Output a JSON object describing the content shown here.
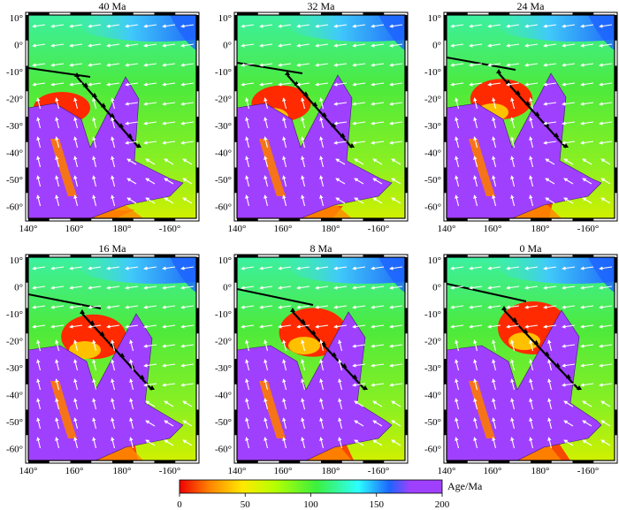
{
  "figure": {
    "panels": [
      {
        "title": "40 Ma"
      },
      {
        "title": "32 Ma"
      },
      {
        "title": "24 Ma"
      },
      {
        "title": "16 Ma"
      },
      {
        "title": "8 Ma"
      },
      {
        "title": "0 Ma"
      }
    ],
    "lat_labels": [
      "10°",
      "0°",
      "-10°",
      "-20°",
      "-30°",
      "-40°",
      "-50°",
      "-60°"
    ],
    "lon_labels": [
      "140°",
      "160°",
      "180°",
      "-160°"
    ],
    "colorbar": {
      "label": "Age/Ma",
      "ticks": [
        "0",
        "50",
        "100",
        "150",
        "200"
      ],
      "colors": [
        "#f00000",
        "#ff8a00",
        "#ffe800",
        "#b8ff00",
        "#3cf03c",
        "#2cffff",
        "#1e64ff",
        "#a040ff"
      ]
    },
    "colors": {
      "ocean_young": "#ff2a00",
      "ocean_mid": "#48e840",
      "ocean_old": "#1e64ff",
      "continent": "#a040ff",
      "plate_velocity_arrows": "#ffffff",
      "subduction_teeth": "#000000"
    }
  }
}
